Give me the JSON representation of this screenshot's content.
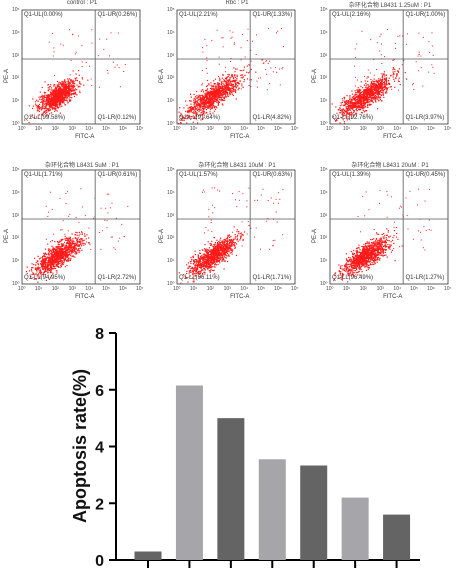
{
  "colors": {
    "dots": "#ff1a1a",
    "gate": "#555555",
    "bar_light": "#a6a6aa",
    "bar_dark": "#646464"
  },
  "panels": [
    {
      "title": "control : P1",
      "ul": "Q1-UL(0.00%)",
      "ur": "Q1-UR(0.26%)",
      "ll": "Q1-LL(99.58%)",
      "lr": "Q1-LR(0.12%)",
      "ylabel": "PE-A",
      "xlabel": "FITC-A",
      "spread": 0.7
    },
    {
      "title": "Rbc : P1",
      "ul": "Q1-UL(2.21%)",
      "ur": "Q1-UR(1.33%)",
      "ll": "Q1-LL(91.64%)",
      "lr": "Q1-LR(4.82%)",
      "ylabel": "PE-A",
      "xlabel": "FITC-A",
      "spread": 1.1
    },
    {
      "title": "杂环化合物 L8431 1.25uM : P1",
      "ul": "Q1-UL(2.16%)",
      "ur": "Q1-UR(1.00%)",
      "ll": "Q1-LL(92.76%)",
      "lr": "Q1-LR(3.97%)",
      "ylabel": "PE-A",
      "xlabel": "FITC-A",
      "spread": 1.0
    },
    {
      "title": "杂环化合物 L8431 5uM : P1",
      "ul": "Q1-UL(1.71%)",
      "ur": "Q1-UR(0.61%)",
      "ll": "Q1-LL(94.95%)",
      "lr": "Q1-LR(2.72%)",
      "ylabel": "PE-A",
      "xlabel": "FITC-A",
      "spread": 0.9
    },
    {
      "title": "杂环化合物 L8431 10uM : P1",
      "ul": "Q1-UL(1.57%)",
      "ur": "Q1-UR(0.63%)",
      "ll": "Q1-LL(96.11%)",
      "lr": "Q1-LR(1.71%)",
      "ylabel": "PE-A",
      "xlabel": "FITC-A",
      "spread": 0.9
    },
    {
      "title": "杂环化合物 L8431 20uM : P1",
      "ul": "Q1-UL(1.39%)",
      "ur": "Q1-UR(0.45%)",
      "ll": "Q1-LL(96.49%)",
      "lr": "Q1-LR(1.27%)",
      "ylabel": "PE-A",
      "xlabel": "FITC-A",
      "spread": 0.85
    }
  ],
  "scatter_ticks": [
    "10⁰",
    "10¹",
    "10²",
    "10³",
    "10⁴",
    "10⁵",
    "10⁶",
    "10⁷"
  ],
  "chart_data": {
    "type": "bar",
    "title": "",
    "xlabel": "",
    "ylabel": "Apoptosis rate(%)",
    "ylim": [
      0,
      8
    ],
    "yticks": [
      "0",
      "2",
      "4",
      "6",
      "8"
    ],
    "categories": [
      "",
      "",
      "",
      "",
      "",
      "",
      ""
    ],
    "values": [
      0.3,
      6.15,
      5.0,
      3.55,
      3.33,
      2.2,
      1.6
    ],
    "bar_colors": [
      "#646464",
      "#a6a6aa",
      "#646464",
      "#a6a6aa",
      "#646464",
      "#a6a6aa",
      "#646464"
    ]
  }
}
